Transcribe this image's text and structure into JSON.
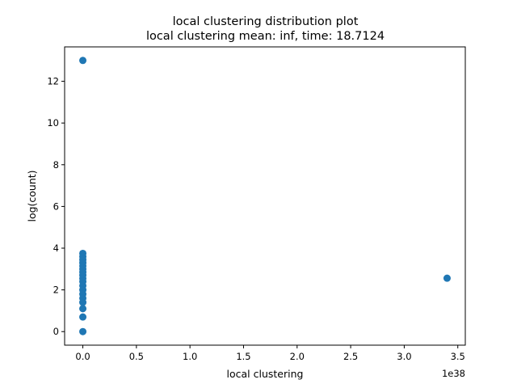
{
  "chart_data": {
    "type": "scatter",
    "title": "local clustering distribution plot",
    "subtitle": "local clustering mean: inf, time: 18.7124",
    "xlabel": "local clustering",
    "ylabel": "log(count)",
    "x_offset_label": "1e38",
    "x_scale": 1e+38,
    "xlim": [
      -0.17,
      3.57
    ],
    "ylim": [
      -0.65,
      13.65
    ],
    "x_ticks": [
      0.0,
      0.5,
      1.0,
      1.5,
      2.0,
      2.5,
      3.0,
      3.5
    ],
    "x_tick_labels": [
      "0.0",
      "0.5",
      "1.0",
      "1.5",
      "2.0",
      "2.5",
      "3.0",
      "3.5"
    ],
    "y_ticks": [
      0,
      2,
      4,
      6,
      8,
      10,
      12
    ],
    "y_tick_labels": [
      "0",
      "2",
      "4",
      "6",
      "8",
      "10",
      "12"
    ],
    "grid": false,
    "marker_color": "#1f77b4",
    "points": [
      {
        "x": 0,
        "y": 13.0
      },
      {
        "x": 0,
        "y": 3.75
      },
      {
        "x": 0,
        "y": 3.6
      },
      {
        "x": 0,
        "y": 3.45
      },
      {
        "x": 0,
        "y": 3.3
      },
      {
        "x": 0,
        "y": 3.15
      },
      {
        "x": 0,
        "y": 3.0
      },
      {
        "x": 0,
        "y": 2.85
      },
      {
        "x": 0,
        "y": 2.7
      },
      {
        "x": 0,
        "y": 2.55
      },
      {
        "x": 0,
        "y": 2.4
      },
      {
        "x": 0,
        "y": 2.2
      },
      {
        "x": 0,
        "y": 2.0
      },
      {
        "x": 0,
        "y": 1.8
      },
      {
        "x": 0,
        "y": 1.6
      },
      {
        "x": 0,
        "y": 1.4
      },
      {
        "x": 0,
        "y": 1.1
      },
      {
        "x": 0,
        "y": 0.7
      },
      {
        "x": 0,
        "y": 0.0
      },
      {
        "x": 3.4,
        "y": 2.56
      }
    ]
  }
}
